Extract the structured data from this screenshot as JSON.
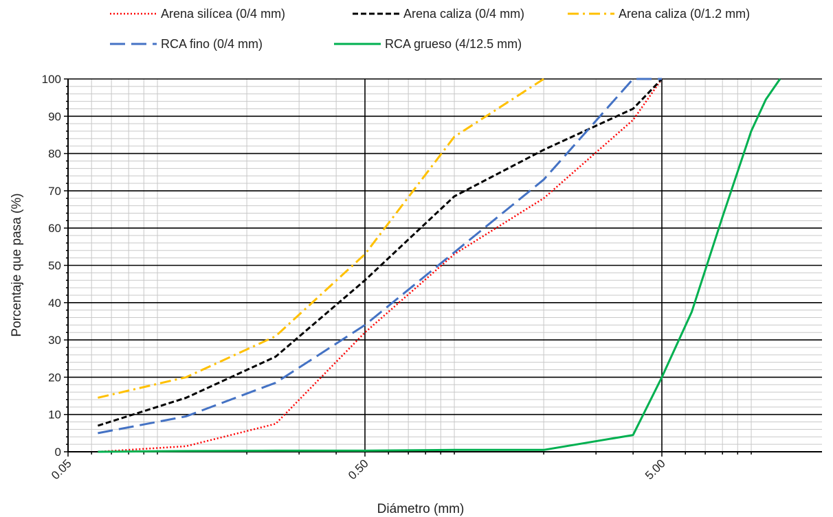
{
  "chart_data": {
    "type": "line",
    "xscale": "log",
    "xlabel": "Diámetro (mm)",
    "ylabel": "Porcentaje que pasa (%)",
    "xlim": [
      0.05,
      25
    ],
    "ylim": [
      0,
      100
    ],
    "xticks": [
      0.05,
      0.5,
      5.0
    ],
    "xtick_labels": [
      "0.05",
      "0.50",
      "5.00"
    ],
    "yticks": [
      0,
      10,
      20,
      30,
      40,
      50,
      60,
      70,
      80,
      90,
      100
    ],
    "ytick_labels": [
      "0",
      "10",
      "20",
      "30",
      "40",
      "50",
      "60",
      "70",
      "80",
      "90",
      "100"
    ],
    "grid": true,
    "legend_position": "top",
    "series": [
      {
        "name": "Arena silícea (0/4 mm)",
        "color": "#ff0000",
        "style": "dotted",
        "x": [
          0.063,
          0.125,
          0.25,
          0.5,
          1.0,
          2.0,
          4.0,
          5.0
        ],
        "y": [
          0,
          1.5,
          7.5,
          32,
          53,
          68,
          89,
          100
        ]
      },
      {
        "name": "Arena caliza (0/4 mm)",
        "color": "#000000",
        "style": "short-dash",
        "x": [
          0.063,
          0.125,
          0.25,
          0.5,
          1.0,
          2.0,
          4.0,
          5.0
        ],
        "y": [
          7,
          14.5,
          25.5,
          46,
          68.5,
          81,
          92,
          100
        ]
      },
      {
        "name": "Arena caliza (0/1.2 mm)",
        "color": "#ffc000",
        "style": "dash-dot",
        "x": [
          0.063,
          0.125,
          0.25,
          0.5,
          1.0,
          2.0
        ],
        "y": [
          14.5,
          20,
          31,
          53,
          84.5,
          100
        ]
      },
      {
        "name": "RCA fino (0/4 mm)",
        "color": "#4472c4",
        "style": "long-dash",
        "x": [
          0.063,
          0.125,
          0.25,
          0.5,
          1.0,
          2.0,
          4.0,
          5.0
        ],
        "y": [
          5,
          9.5,
          18.5,
          34,
          53.5,
          73,
          100,
          100
        ]
      },
      {
        "name": "RCA grueso (4/12.5 mm)",
        "color": "#00b050",
        "style": "solid",
        "x": [
          0.063,
          0.125,
          0.25,
          0.5,
          1.0,
          2.0,
          4.0,
          5.0,
          6.3,
          8.0,
          10.0,
          11.2,
          12.5
        ],
        "y": [
          0,
          0.2,
          0.3,
          0.3,
          0.5,
          0.5,
          4.5,
          20,
          37.5,
          63,
          86,
          94.5,
          100
        ]
      }
    ]
  }
}
